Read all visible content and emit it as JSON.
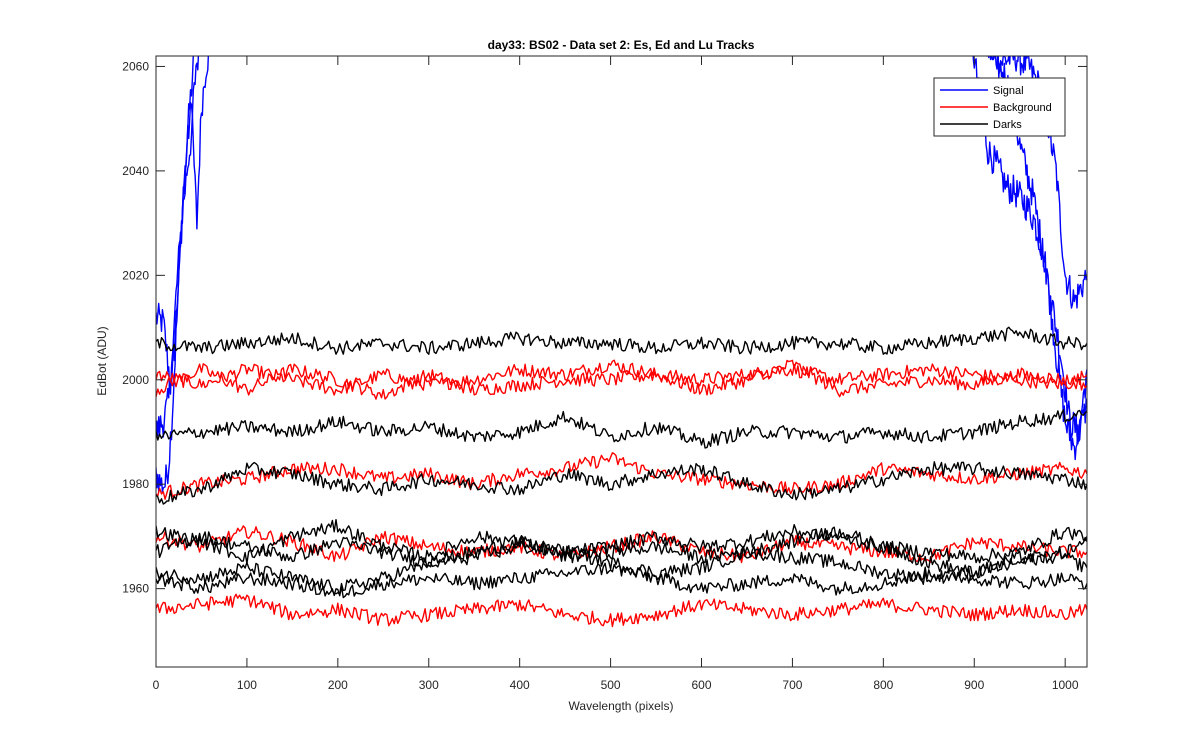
{
  "chart_data": {
    "type": "line",
    "title": "day33: BS02 - Data set 2: Es, Ed and Lu Tracks",
    "xlabel": "Wavelength (pixels)",
    "ylabel": "EdBot (ADU)",
    "xlim": [
      0,
      1024
    ],
    "ylim": [
      1945,
      2062
    ],
    "xticks": [
      0,
      100,
      200,
      300,
      400,
      500,
      600,
      700,
      800,
      900,
      1000
    ],
    "yticks": [
      1960,
      1980,
      2000,
      2020,
      2040,
      2060
    ],
    "grid": false,
    "legend": {
      "position": "top-right",
      "entries": [
        {
          "label": "Signal",
          "color": "#0000ff"
        },
        {
          "label": "Background",
          "color": "#ff0000"
        },
        {
          "label": "Darks",
          "color": "#000000"
        }
      ]
    },
    "series": [
      {
        "group": "Signal",
        "color": "#0000ff",
        "x": [
          0,
          8,
          12,
          16,
          20,
          25,
          30,
          35,
          40,
          46
        ],
        "y": [
          2012,
          2011,
          2005,
          1999,
          2006,
          2020,
          2035,
          2048,
          2058,
          2070
        ]
      },
      {
        "group": "Signal",
        "color": "#0000ff",
        "x": [
          0,
          6,
          10,
          14,
          18,
          22,
          26,
          30,
          36,
          42,
          48,
          55,
          60
        ],
        "y": [
          1982,
          1980,
          1980,
          1984,
          1994,
          2008,
          2022,
          2036,
          2048,
          2056,
          2063,
          2068,
          2072
        ]
      },
      {
        "group": "Signal",
        "color": "#0000ff",
        "x": [
          0,
          8,
          14,
          18,
          22,
          28,
          34,
          40,
          45,
          50,
          55,
          60
        ],
        "y": [
          1990,
          1992,
          1996,
          2004,
          2016,
          2030,
          2040,
          2048,
          2030,
          2052,
          2060,
          2064
        ]
      },
      {
        "group": "Signal",
        "color": "#0000ff",
        "x": [
          900,
          915,
          930,
          945,
          960,
          975,
          990,
          1000,
          1010,
          1024
        ],
        "y": [
          2070,
          2063,
          2061,
          2062,
          2060,
          2055,
          2040,
          2020,
          2015,
          2020
        ]
      },
      {
        "group": "Signal",
        "color": "#0000ff",
        "x": [
          895,
          905,
          915,
          925,
          935,
          945,
          955,
          965,
          975,
          985,
          995,
          1005,
          1015,
          1024
        ],
        "y": [
          2068,
          2055,
          2044,
          2041,
          2037,
          2036,
          2034,
          2031,
          2025,
          2015,
          2005,
          1992,
          1990,
          2002
        ]
      },
      {
        "group": "Signal",
        "color": "#0000ff",
        "x": [
          905,
          920,
          935,
          950,
          965,
          980,
          990,
          1000,
          1010,
          1024
        ],
        "y": [
          2070,
          2062,
          2058,
          2045,
          2035,
          2020,
          2005,
          1992,
          1987,
          1995
        ]
      },
      {
        "group": "Background",
        "color": "#ff0000",
        "x": [
          0,
          50,
          100,
          150,
          200,
          250,
          300,
          350,
          400,
          450,
          500,
          550,
          600,
          650,
          700,
          750,
          800,
          850,
          900,
          950,
          1000,
          1024
        ],
        "y": [
          2001,
          1999,
          2002,
          2000,
          1998,
          2001,
          1999,
          2000,
          2002,
          2001,
          2003,
          2001,
          2000,
          2001,
          2002,
          2000,
          2001,
          2002,
          2001,
          2000,
          1999,
          2001
        ]
      },
      {
        "group": "Background",
        "color": "#ff0000",
        "x": [
          0,
          50,
          100,
          150,
          200,
          250,
          300,
          350,
          400,
          450,
          500,
          550,
          600,
          650,
          700,
          750,
          800,
          850,
          900,
          950,
          1000,
          1024
        ],
        "y": [
          1998,
          2002,
          1998,
          2002,
          2000,
          1997,
          2001,
          1998,
          1999,
          2000,
          2000,
          2001,
          1998,
          2000,
          2003,
          1998,
          1999,
          2000,
          1999,
          2001,
          2000,
          1999
        ]
      },
      {
        "group": "Background",
        "color": "#ff0000",
        "x": [
          0,
          50,
          100,
          150,
          200,
          250,
          300,
          350,
          400,
          450,
          500,
          550,
          600,
          650,
          700,
          750,
          800,
          850,
          900,
          950,
          1000,
          1024
        ],
        "y": [
          1978,
          1980,
          1981,
          1983,
          1983,
          1981,
          1982,
          1980,
          1982,
          1983,
          1985,
          1982,
          1981,
          1980,
          1979,
          1980,
          1983,
          1982,
          1981,
          1982,
          1983,
          1982
        ]
      },
      {
        "group": "Background",
        "color": "#ff0000",
        "x": [
          0,
          50,
          100,
          150,
          200,
          250,
          300,
          350,
          400,
          450,
          500,
          550,
          600,
          650,
          700,
          750,
          800,
          850,
          900,
          950,
          1000,
          1024
        ],
        "y": [
          1970,
          1968,
          1971,
          1969,
          1966,
          1970,
          1968,
          1967,
          1968,
          1966,
          1968,
          1970,
          1967,
          1966,
          1969,
          1968,
          1967,
          1966,
          1969,
          1968,
          1967,
          1967
        ]
      },
      {
        "group": "Background",
        "color": "#ff0000",
        "x": [
          0,
          50,
          100,
          150,
          200,
          250,
          300,
          350,
          400,
          450,
          500,
          550,
          600,
          650,
          700,
          750,
          800,
          850,
          900,
          950,
          1000,
          1024
        ],
        "y": [
          1956,
          1957,
          1958,
          1955,
          1956,
          1954,
          1955,
          1956,
          1957,
          1955,
          1954,
          1955,
          1957,
          1956,
          1955,
          1956,
          1957,
          1956,
          1955,
          1956,
          1955,
          1956
        ]
      },
      {
        "group": "Darks",
        "color": "#000000",
        "x": [
          0,
          50,
          100,
          150,
          200,
          250,
          300,
          350,
          400,
          450,
          500,
          550,
          600,
          650,
          700,
          750,
          800,
          850,
          900,
          950,
          1000,
          1024
        ],
        "y": [
          2007,
          2006,
          2007,
          2008,
          2006,
          2007,
          2006,
          2007,
          2008,
          2007,
          2007,
          2006,
          2007,
          2006,
          2007,
          2007,
          2006,
          2007,
          2008,
          2009,
          2007,
          2007
        ]
      },
      {
        "group": "Darks",
        "color": "#000000",
        "x": [
          0,
          50,
          100,
          150,
          200,
          250,
          300,
          350,
          400,
          450,
          500,
          550,
          600,
          650,
          700,
          750,
          800,
          850,
          900,
          950,
          1000,
          1024
        ],
        "y": [
          1989,
          1990,
          1991,
          1990,
          1992,
          1990,
          1991,
          1989,
          1990,
          1993,
          1989,
          1991,
          1988,
          1990,
          1990,
          1989,
          1990,
          1989,
          1990,
          1992,
          1993,
          1994
        ]
      },
      {
        "group": "Darks",
        "color": "#000000",
        "x": [
          0,
          50,
          100,
          150,
          200,
          250,
          300,
          350,
          400,
          450,
          500,
          550,
          600,
          650,
          700,
          750,
          800,
          850,
          900,
          950,
          1000,
          1024
        ],
        "y": [
          1977,
          1979,
          1983,
          1982,
          1980,
          1979,
          1981,
          1980,
          1979,
          1982,
          1980,
          1982,
          1983,
          1980,
          1978,
          1979,
          1981,
          1983,
          1983,
          1982,
          1981,
          1980
        ]
      },
      {
        "group": "Darks",
        "color": "#000000",
        "x": [
          0,
          50,
          100,
          150,
          200,
          250,
          300,
          350,
          400,
          450,
          500,
          550,
          600,
          650,
          700,
          750,
          800,
          850,
          900,
          950,
          1000,
          1024
        ],
        "y": [
          1971,
          1969,
          1966,
          1970,
          1972,
          1968,
          1966,
          1970,
          1969,
          1967,
          1968,
          1970,
          1968,
          1969,
          1971,
          1970,
          1968,
          1967,
          1966,
          1967,
          1971,
          1970
        ]
      },
      {
        "group": "Darks",
        "color": "#000000",
        "x": [
          0,
          50,
          100,
          150,
          200,
          250,
          300,
          350,
          400,
          450,
          500,
          550,
          600,
          650,
          700,
          750,
          800,
          850,
          900,
          950,
          1000,
          1024
        ],
        "y": [
          1967,
          1970,
          1968,
          1966,
          1969,
          1967,
          1965,
          1967,
          1969,
          1966,
          1967,
          1968,
          1966,
          1967,
          1969,
          1971,
          1968,
          1965,
          1963,
          1965,
          1967,
          1969
        ]
      },
      {
        "group": "Darks",
        "color": "#000000",
        "x": [
          0,
          50,
          100,
          150,
          200,
          250,
          300,
          350,
          400,
          450,
          500,
          550,
          600,
          650,
          700,
          750,
          800,
          850,
          900,
          950,
          1000,
          1024
        ],
        "y": [
          1963,
          1962,
          1964,
          1962,
          1960,
          1962,
          1965,
          1966,
          1968,
          1967,
          1965,
          1963,
          1964,
          1967,
          1966,
          1965,
          1963,
          1962,
          1963,
          1966,
          1966,
          1964
        ]
      },
      {
        "group": "Darks",
        "color": "#000000",
        "x": [
          0,
          50,
          100,
          150,
          200,
          250,
          300,
          350,
          400,
          450,
          500,
          550,
          600,
          650,
          700,
          750,
          800,
          850,
          900,
          950,
          1000,
          1024
        ],
        "y": [
          1962,
          1960,
          1962,
          1961,
          1959,
          1961,
          1962,
          1961,
          1962,
          1963,
          1964,
          1962,
          1960,
          1961,
          1962,
          1960,
          1961,
          1963,
          1962,
          1961,
          1962,
          1961
        ]
      }
    ]
  }
}
